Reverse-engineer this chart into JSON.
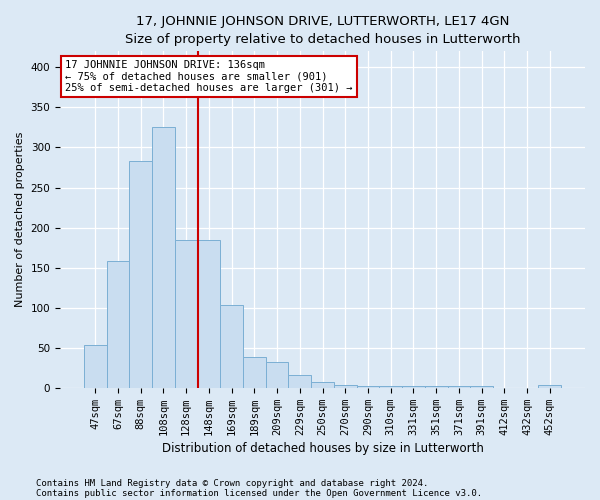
{
  "title1": "17, JOHNNIE JOHNSON DRIVE, LUTTERWORTH, LE17 4GN",
  "title2": "Size of property relative to detached houses in Lutterworth",
  "xlabel": "Distribution of detached houses by size in Lutterworth",
  "ylabel": "Number of detached properties",
  "categories": [
    "47sqm",
    "67sqm",
    "88sqm",
    "108sqm",
    "128sqm",
    "148sqm",
    "169sqm",
    "189sqm",
    "209sqm",
    "229sqm",
    "250sqm",
    "270sqm",
    "290sqm",
    "310sqm",
    "331sqm",
    "351sqm",
    "371sqm",
    "391sqm",
    "412sqm",
    "432sqm",
    "452sqm"
  ],
  "values": [
    53,
    158,
    283,
    326,
    185,
    184,
    103,
    38,
    32,
    16,
    7,
    4,
    2,
    2,
    2,
    2,
    2,
    2,
    0,
    0,
    3
  ],
  "bar_color": "#c9ddf0",
  "bar_edge_color": "#7bafd4",
  "vline_color": "#cc0000",
  "vline_pos": 4.5,
  "annotation_line1": "17 JOHNNIE JOHNSON DRIVE: 136sqm",
  "annotation_line2": "← 75% of detached houses are smaller (901)",
  "annotation_line3": "25% of semi-detached houses are larger (301) →",
  "annotation_box_color": "white",
  "annotation_box_edge": "#cc0000",
  "ylim": [
    0,
    420
  ],
  "yticks": [
    0,
    50,
    100,
    150,
    200,
    250,
    300,
    350,
    400
  ],
  "footer1": "Contains HM Land Registry data © Crown copyright and database right 2024.",
  "footer2": "Contains public sector information licensed under the Open Government Licence v3.0.",
  "bg_color": "#dce9f5",
  "grid_color": "white",
  "title1_fontsize": 9.5,
  "title2_fontsize": 8.5,
  "xlabel_fontsize": 8.5,
  "ylabel_fontsize": 8,
  "tick_fontsize": 7.5,
  "annot_fontsize": 7.5,
  "footer_fontsize": 6.5
}
